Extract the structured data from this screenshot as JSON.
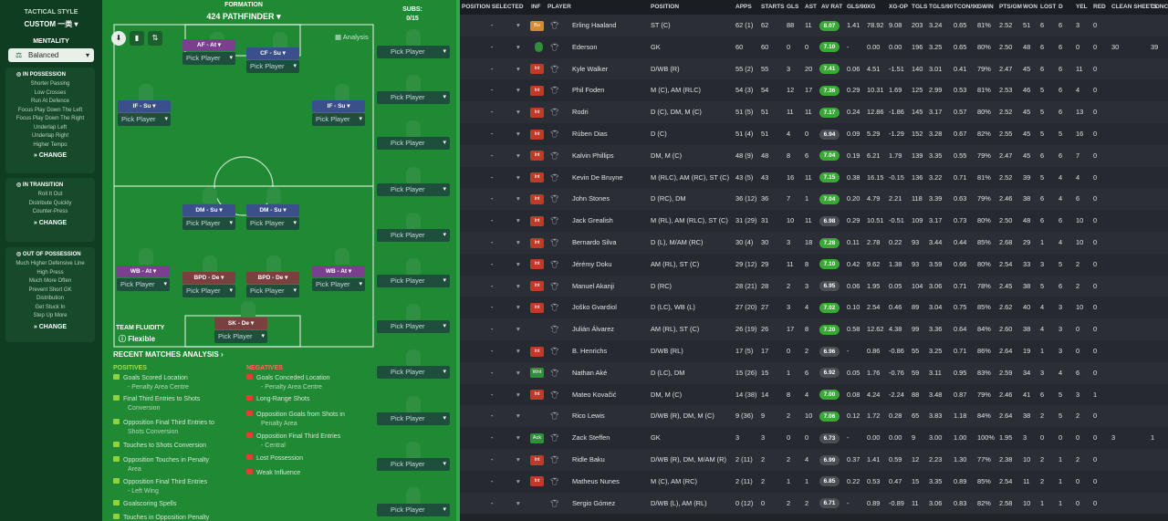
{
  "left": {
    "title": "TACTICAL STYLE",
    "custom": "CUSTOM 一类",
    "mentality_label": "MENTALITY",
    "mentality": "Balanced",
    "in_possession": {
      "title": "IN POSSESSION",
      "lines": [
        "Shorter Passing",
        "Low Crosses",
        "Run At Defence",
        "Focus Play Down The Left",
        "Focus Play Down The Right",
        "Underlap Left",
        "Underlap Right",
        "Higher Tempo"
      ],
      "change": "CHANGE"
    },
    "in_transition": {
      "title": "IN TRANSITION",
      "lines": [
        "Roll It Out",
        "Distribute Quickly",
        "Counter-Press"
      ],
      "change": "CHANGE"
    },
    "out_possession": {
      "title": "OUT OF POSSESSION",
      "lines": [
        "Much Higher Defensive Line",
        "High Press",
        "Much More Often",
        "Prevent Short GK",
        "Distribution",
        "Get Stuck In",
        "Step Up More"
      ],
      "change": "CHANGE"
    }
  },
  "pitch": {
    "formation_label": "FORMATION",
    "formation": "424 PATHFINDER",
    "subs_label": "SUBS:",
    "subs_count": "0/15",
    "analysis": "Analysis",
    "pick": "Pick Player",
    "positions": [
      {
        "role": "AF",
        "duty": "At"
      },
      {
        "role": "CF",
        "duty": "Su"
      },
      {
        "role": "IF",
        "duty": "Su"
      },
      {
        "role": "IF",
        "duty": "Su"
      },
      {
        "role": "DM",
        "duty": "Su"
      },
      {
        "role": "DM",
        "duty": "Su"
      },
      {
        "role": "WB",
        "duty": "At"
      },
      {
        "role": "BPD",
        "duty": "De"
      },
      {
        "role": "BPD",
        "duty": "De"
      },
      {
        "role": "WB",
        "duty": "At"
      },
      {
        "role": "SK",
        "duty": "De"
      }
    ],
    "team_fluidity_label": "TEAM FLUIDITY",
    "team_fluidity": "Flexible"
  },
  "analysis": {
    "title": "RECENT MATCHES ANALYSIS ›",
    "positives_label": "POSITIVES",
    "negatives_label": "NEGATIVES",
    "positives": [
      "Goals Scored Location",
      "- Penalty Area Centre",
      "Final Third Entries to Shots",
      "Conversion",
      "Opposition Final Third Entries to",
      "Shots Conversion",
      "Touches to Shots Conversion",
      "Opposition Touches in Penalty",
      "Area",
      "Opposition Final Third Entries",
      "- Left Wing",
      "Goalscoring Spells",
      "Touches in Opposition Penalty"
    ],
    "negatives": [
      "Goals Conceded Location",
      "- Penalty Area Centre",
      "Long-Range Shots",
      "Opposition Goals from Shots in",
      "Penalty Area",
      "Opposition Final Third Entries",
      "- Central",
      "Lost Possession",
      "Weak Influence"
    ]
  },
  "table": {
    "headers": [
      "POSITION SELECTED",
      "INF",
      "PLAYER",
      "POSITION",
      "APPS",
      "STARTS",
      "GLS",
      "AST",
      "AV RAT",
      "GLS/90",
      "XG",
      "XG-OP",
      "TGLS",
      "TGLS/90",
      "TCON/90",
      "GWIN",
      "PTS/GM",
      "WON",
      "LOST",
      "D",
      "YEL",
      "RED",
      "CLEAN SHEETS",
      "CONC"
    ],
    "rows": [
      [
        "-",
        "Bu",
        "Erling Haaland",
        "ST (C)",
        "62 (1)",
        "62",
        "88",
        "11",
        "8.07",
        "1.41",
        "78.92",
        "9.08",
        "203",
        "3.24",
        "0.65",
        "81%",
        "2.52",
        "51",
        "6",
        "6",
        "3",
        "0",
        "",
        ""
      ],
      [
        "-",
        "",
        "Ederson",
        "GK",
        "60",
        "60",
        "0",
        "0",
        "7.10",
        "-",
        "0.00",
        "0.00",
        "196",
        "3.25",
        "0.65",
        "80%",
        "2.50",
        "48",
        "6",
        "6",
        "0",
        "0",
        "30",
        "39"
      ],
      [
        "-",
        "Int",
        "Kyle Walker",
        "D/WB (R)",
        "55 (2)",
        "55",
        "3",
        "20",
        "7.41",
        "0.06",
        "4.51",
        "-1.51",
        "140",
        "3.01",
        "0.41",
        "79%",
        "2.47",
        "45",
        "6",
        "6",
        "11",
        "0",
        "",
        ""
      ],
      [
        "-",
        "Int",
        "Phil Foden",
        "M (C), AM (RLC)",
        "54 (3)",
        "54",
        "12",
        "17",
        "7.36",
        "0.29",
        "10.31",
        "1.69",
        "125",
        "2.99",
        "0.53",
        "81%",
        "2.53",
        "46",
        "5",
        "6",
        "4",
        "0",
        "",
        ""
      ],
      [
        "-",
        "Int",
        "Rodri",
        "D (C), DM, M (C)",
        "51 (5)",
        "51",
        "11",
        "11",
        "7.17",
        "0.24",
        "12.86",
        "-1.86",
        "145",
        "3.17",
        "0.57",
        "80%",
        "2.52",
        "45",
        "5",
        "6",
        "13",
        "0",
        "",
        ""
      ],
      [
        "-",
        "Int",
        "Rúben Dias",
        "D (C)",
        "51 (4)",
        "51",
        "4",
        "0",
        "6.94",
        "0.09",
        "5.29",
        "-1.29",
        "152",
        "3.28",
        "0.67",
        "82%",
        "2.55",
        "45",
        "5",
        "5",
        "16",
        "0",
        "",
        ""
      ],
      [
        "-",
        "Int",
        "Kalvin Phillips",
        "DM, M (C)",
        "48 (9)",
        "48",
        "8",
        "6",
        "7.04",
        "0.19",
        "6.21",
        "1.79",
        "139",
        "3.35",
        "0.55",
        "79%",
        "2.47",
        "45",
        "6",
        "6",
        "7",
        "0",
        "",
        ""
      ],
      [
        "-",
        "Int",
        "Kevin De Bruyne",
        "M (RLC), AM (RC), ST (C)",
        "43 (5)",
        "43",
        "16",
        "11",
        "7.15",
        "0.38",
        "16.15",
        "-0.15",
        "136",
        "3.22",
        "0.71",
        "81%",
        "2.52",
        "39",
        "5",
        "4",
        "4",
        "0",
        "",
        ""
      ],
      [
        "-",
        "Int",
        "John Stones",
        "D (RC), DM",
        "36 (12)",
        "36",
        "7",
        "1",
        "7.04",
        "0.20",
        "4.79",
        "2.21",
        "118",
        "3.39",
        "0.63",
        "79%",
        "2.46",
        "38",
        "6",
        "4",
        "6",
        "0",
        "",
        ""
      ],
      [
        "-",
        "Int",
        "Jack Grealish",
        "M (RL), AM (RLC), ST (C)",
        "31 (29)",
        "31",
        "10",
        "11",
        "6.98",
        "0.29",
        "10.51",
        "-0.51",
        "109",
        "3.17",
        "0.73",
        "80%",
        "2.50",
        "48",
        "6",
        "6",
        "10",
        "0",
        "",
        ""
      ],
      [
        "-",
        "Int",
        "Bernardo Silva",
        "D (L), M/AM (RC)",
        "30 (4)",
        "30",
        "3",
        "18",
        "7.28",
        "0.11",
        "2.78",
        "0.22",
        "93",
        "3.44",
        "0.44",
        "85%",
        "2.68",
        "29",
        "1",
        "4",
        "10",
        "0",
        "",
        ""
      ],
      [
        "-",
        "Int",
        "Jérémy Doku",
        "AM (RL), ST (C)",
        "29 (12)",
        "29",
        "11",
        "8",
        "7.10",
        "0.42",
        "9.62",
        "1.38",
        "93",
        "3.59",
        "0.66",
        "80%",
        "2.54",
        "33",
        "3",
        "5",
        "2",
        "0",
        "",
        ""
      ],
      [
        "-",
        "Int",
        "Manuel Akanji",
        "D (RC)",
        "28 (21)",
        "28",
        "2",
        "3",
        "6.95",
        "0.06",
        "1.95",
        "0.05",
        "104",
        "3.06",
        "0.71",
        "78%",
        "2.45",
        "38",
        "5",
        "6",
        "2",
        "0",
        "",
        ""
      ],
      [
        "-",
        "Int",
        "Joško Gvardiol",
        "D (LC), WB (L)",
        "27 (20)",
        "27",
        "3",
        "4",
        "7.02",
        "0.10",
        "2.54",
        "0.46",
        "89",
        "3.04",
        "0.75",
        "85%",
        "2.62",
        "40",
        "4",
        "3",
        "10",
        "0",
        "",
        ""
      ],
      [
        "-",
        "",
        "Julián Álvarez",
        "AM (RL), ST (C)",
        "26 (19)",
        "26",
        "17",
        "8",
        "7.20",
        "0.58",
        "12.62",
        "4.38",
        "99",
        "3.36",
        "0.64",
        "84%",
        "2.60",
        "38",
        "4",
        "3",
        "0",
        "0",
        "",
        ""
      ],
      [
        "-",
        "Int",
        "B. Henrichs",
        "D/WB (RL)",
        "17 (5)",
        "17",
        "0",
        "2",
        "6.96",
        "-",
        "0.86",
        "-0.86",
        "55",
        "3.25",
        "0.71",
        "86%",
        "2.64",
        "19",
        "1",
        "3",
        "0",
        "0",
        "",
        ""
      ],
      [
        "-",
        "Wnt",
        "Nathan Aké",
        "D (LC), DM",
        "15 (26)",
        "15",
        "1",
        "6",
        "6.92",
        "0.05",
        "1.76",
        "-0.76",
        "59",
        "3.11",
        "0.95",
        "83%",
        "2.59",
        "34",
        "3",
        "4",
        "6",
        "0",
        "",
        ""
      ],
      [
        "-",
        "Int",
        "Mateo Kovačić",
        "DM, M (C)",
        "14 (38)",
        "14",
        "8",
        "4",
        "7.00",
        "0.08",
        "4.24",
        "-2.24",
        "88",
        "3.48",
        "0.87",
        "79%",
        "2.46",
        "41",
        "6",
        "5",
        "3",
        "1",
        "",
        ""
      ],
      [
        "-",
        "",
        "Rico Lewis",
        "D/WB (R), DM, M (C)",
        "9 (36)",
        "9",
        "2",
        "10",
        "7.06",
        "0.12",
        "1.72",
        "0.28",
        "65",
        "3.83",
        "1.18",
        "84%",
        "2.64",
        "38",
        "2",
        "5",
        "2",
        "0",
        "",
        ""
      ],
      [
        "-",
        "Ack",
        "Zack Steffen",
        "GK",
        "3",
        "3",
        "0",
        "0",
        "6.73",
        "-",
        "0.00",
        "0.00",
        "9",
        "3.00",
        "1.00",
        "100%",
        "1.95",
        "3",
        "0",
        "0",
        "0",
        "0",
        "3",
        "1"
      ],
      [
        "-",
        "Int",
        "Ridle Baku",
        "D/WB (R), DM, M/AM (R)",
        "2 (11)",
        "2",
        "2",
        "4",
        "6.99",
        "0.37",
        "1.41",
        "0.59",
        "12",
        "2.23",
        "1.30",
        "77%",
        "2.38",
        "10",
        "2",
        "1",
        "2",
        "0",
        "",
        ""
      ],
      [
        "-",
        "Int",
        "Matheus Nunes",
        "M (C), AM (RC)",
        "2 (11)",
        "2",
        "1",
        "1",
        "6.85",
        "0.22",
        "0.53",
        "0.47",
        "15",
        "3.35",
        "0.89",
        "85%",
        "2.54",
        "11",
        "2",
        "1",
        "0",
        "0",
        "",
        ""
      ],
      [
        "-",
        "",
        "Sergio Gómez",
        "D/WB (L), AM (RL)",
        "0 (12)",
        "0",
        "2",
        "2",
        "6.71",
        "-",
        "0.89",
        "-0.89",
        "11",
        "3.06",
        "0.83",
        "82%",
        "2.58",
        "10",
        "1",
        "1",
        "0",
        "0",
        "",
        ""
      ]
    ]
  },
  "colors": {
    "rating_green": "#39a935",
    "rating_gray": "#4a4f56",
    "inf_int": "#c0392b",
    "inf_bu": "#d68a2e",
    "inf_wnt": "#2f8f3a",
    "duty_at": "#7a3f8f",
    "duty_su": "#3b4f8a",
    "duty_de": "#7a3f3f"
  }
}
